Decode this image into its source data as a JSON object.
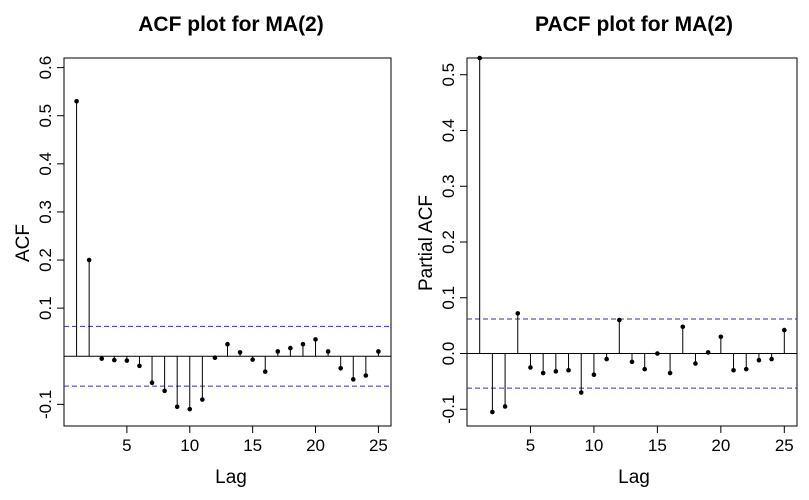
{
  "chart_data": [
    {
      "type": "stem",
      "title": "ACF plot for MA(2)",
      "xlabel": "Lag",
      "ylabel": "ACF",
      "xlim": [
        0,
        26
      ],
      "ylim": [
        -0.145,
        0.62
      ],
      "xticks": [
        5,
        10,
        15,
        20,
        25
      ],
      "yticks": [
        -0.1,
        0.1,
        0.2,
        0.3,
        0.4,
        0.5,
        0.6
      ],
      "ytick_labels": [
        "-0.1",
        "0.1",
        "0.2",
        "0.3",
        "0.4",
        "0.5",
        "0.6"
      ],
      "confidence_bound": 0.062,
      "lags": [
        1,
        2,
        3,
        4,
        5,
        6,
        7,
        8,
        9,
        10,
        11,
        12,
        13,
        14,
        15,
        16,
        17,
        18,
        19,
        20,
        21,
        22,
        23,
        24,
        25
      ],
      "values": [
        0.53,
        0.2,
        -0.005,
        -0.008,
        -0.009,
        -0.02,
        -0.055,
        -0.072,
        -0.105,
        -0.11,
        -0.09,
        -0.003,
        0.025,
        0.008,
        -0.007,
        -0.032,
        0.01,
        0.017,
        0.025,
        0.035,
        0.01,
        -0.025,
        -0.048,
        -0.04,
        0.01
      ],
      "colors": {
        "stem": "#000000",
        "bound": "#2d2db4",
        "zero": "#000000"
      }
    },
    {
      "type": "stem",
      "title": "PACF plot for MA(2)",
      "xlabel": "Lag",
      "ylabel": "Partial ACF",
      "xlim": [
        0,
        26
      ],
      "ylim": [
        -0.13,
        0.53
      ],
      "xticks": [
        5,
        10,
        15,
        20,
        25
      ],
      "yticks": [
        -0.1,
        0.0,
        0.1,
        0.2,
        0.3,
        0.4,
        0.5
      ],
      "ytick_labels": [
        "-0.1",
        "0.0",
        "0.1",
        "0.2",
        "0.3",
        "0.4",
        "0.5"
      ],
      "confidence_bound": 0.062,
      "lags": [
        1,
        2,
        3,
        4,
        5,
        6,
        7,
        8,
        9,
        10,
        11,
        12,
        13,
        14,
        15,
        16,
        17,
        18,
        19,
        20,
        21,
        22,
        23,
        24,
        25
      ],
      "values": [
        0.53,
        -0.105,
        -0.095,
        0.072,
        -0.025,
        -0.035,
        -0.032,
        -0.03,
        -0.07,
        -0.038,
        -0.01,
        0.06,
        -0.015,
        -0.028,
        0.0,
        -0.035,
        0.048,
        -0.018,
        0.002,
        0.03,
        -0.03,
        -0.028,
        -0.012,
        -0.01,
        0.042
      ],
      "colors": {
        "stem": "#000000",
        "bound": "#2d2db4",
        "zero": "#000000"
      }
    }
  ]
}
